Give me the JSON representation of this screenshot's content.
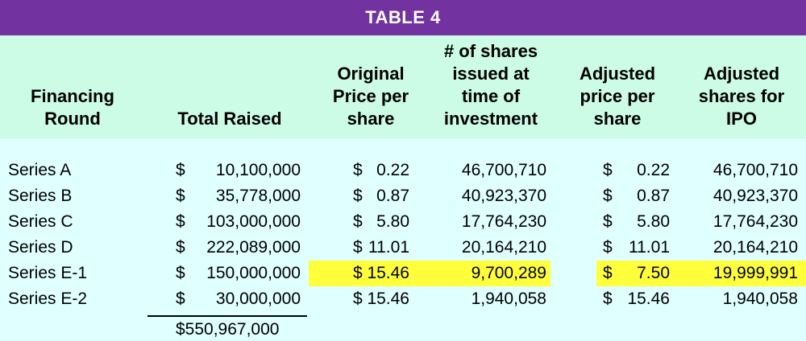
{
  "title": "TABLE 4",
  "headers": {
    "round": [
      "Financing",
      "Round"
    ],
    "total": [
      "Total Raised"
    ],
    "price": [
      "Original",
      "Price per",
      "share"
    ],
    "shares": [
      "# of shares",
      "issued at",
      "time of",
      "investment"
    ],
    "adj_price": [
      "Adjusted",
      "price per",
      "share"
    ],
    "adj_shares": [
      "Adjusted",
      "shares for",
      "IPO"
    ]
  },
  "currency_symbol": "$",
  "rows": [
    {
      "round": "Series A",
      "total": "10,100,000",
      "price": "0.22",
      "shares": "46,700,710",
      "adj_price": "0.22",
      "adj_shares": "46,700,710",
      "highlight": false
    },
    {
      "round": "Series B",
      "total": "35,778,000",
      "price": "0.87",
      "shares": "40,923,370",
      "adj_price": "0.87",
      "adj_shares": "40,923,370",
      "highlight": false
    },
    {
      "round": "Series C",
      "total": "103,000,000",
      "price": "5.80",
      "shares": "17,764,230",
      "adj_price": "5.80",
      "adj_shares": "17,764,230",
      "highlight": false
    },
    {
      "round": "Series D",
      "total": "222,089,000",
      "price": "11.01",
      "shares": "20,164,210",
      "adj_price": "11.01",
      "adj_shares": "20,164,210",
      "highlight": false
    },
    {
      "round": "Series E-1",
      "total": "150,000,000",
      "price": "15.46",
      "shares": "9,700,289",
      "adj_price": "7.50",
      "adj_shares": "19,999,991",
      "highlight": true
    },
    {
      "round": "Series E-2",
      "total": "30,000,000",
      "price": "15.46",
      "shares": "1,940,058",
      "adj_price": "15.46",
      "adj_shares": "1,940,058",
      "highlight": false
    }
  ],
  "grand_total": "$550,967,000",
  "colors": {
    "title_bar": "#7232a0",
    "header_band": "#ccfbe6",
    "body": "#e0ffff",
    "highlight": "#ffff3c"
  }
}
